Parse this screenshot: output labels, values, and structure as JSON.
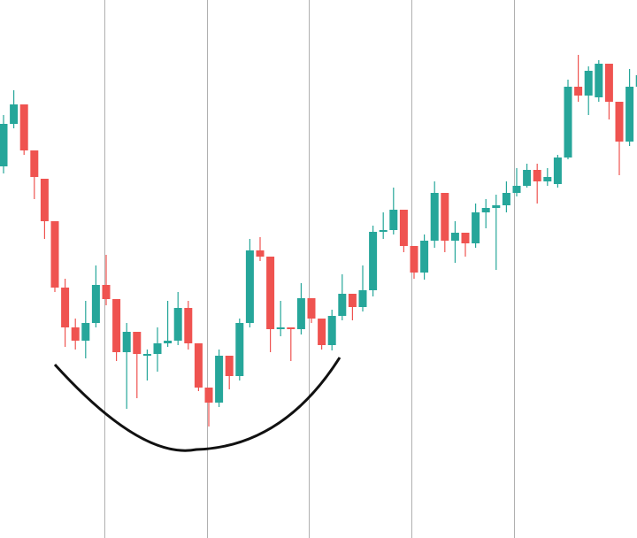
{
  "chart_data": {
    "type": "candlestick",
    "up_color": "#26a69a",
    "down_color": "#ef5350",
    "ylim": [
      0,
      608
    ],
    "open": [
      420,
      468,
      490,
      438,
      406,
      358,
      283,
      238,
      223,
      243,
      286,
      270,
      210,
      233,
      206,
      208,
      220,
      223,
      260,
      220,
      170,
      153,
      206,
      183,
      243,
      325,
      318,
      236,
      238,
      236,
      271,
      248,
      218,
      251,
      276,
      261,
      280,
      346,
      348,
      371,
      330,
      300,
      336,
      390,
      336,
      345,
      333,
      368,
      373,
      376,
      390,
      398,
      416,
      403,
      400,
      430,
      510,
      500,
      498,
      536,
      493,
      448,
      510
    ],
    "high": [
      478,
      506,
      490,
      438,
      406,
      358,
      293,
      248,
      268,
      308,
      320,
      270,
      243,
      233,
      213,
      238,
      268,
      278,
      268,
      220,
      170,
      213,
      206,
      248,
      338,
      340,
      318,
      268,
      238,
      288,
      271,
      248,
      258,
      298,
      276,
      308,
      353,
      368,
      396,
      371,
      330,
      343,
      403,
      390,
      358,
      345,
      378,
      383,
      388,
      403,
      418,
      423,
      423,
      418,
      433,
      518,
      546,
      533,
      540,
      536,
      493,
      530,
      530
    ],
    "low": [
      412,
      463,
      433,
      383,
      338,
      278,
      216,
      213,
      203,
      238,
      263,
      200,
      146,
      158,
      178,
      188,
      216,
      218,
      213,
      166,
      126,
      148,
      168,
      178,
      238,
      313,
      210,
      228,
      200,
      230,
      243,
      213,
      212,
      246,
      246,
      256,
      273,
      338,
      343,
      323,
      293,
      292,
      328,
      323,
      311,
      318,
      328,
      350,
      303,
      368,
      386,
      396,
      378,
      398,
      396,
      428,
      493,
      478,
      493,
      473,
      410,
      443,
      500
    ],
    "close": [
      468,
      490,
      438,
      408,
      358,
      283,
      238,
      223,
      243,
      286,
      270,
      210,
      233,
      208,
      208,
      220,
      223,
      260,
      220,
      170,
      153,
      206,
      183,
      243,
      325,
      318,
      236,
      238,
      236,
      271,
      248,
      218,
      251,
      276,
      261,
      280,
      346,
      348,
      371,
      330,
      300,
      336,
      390,
      336,
      345,
      333,
      368,
      373,
      376,
      390,
      398,
      416,
      403,
      408,
      430,
      510,
      500,
      528,
      536,
      493,
      448,
      510,
      523
    ]
  }
}
